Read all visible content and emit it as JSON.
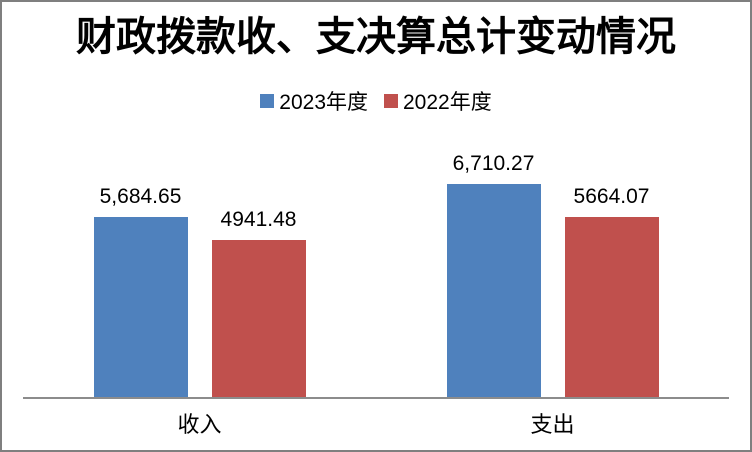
{
  "frame": {
    "background_color": "#FFFFFF",
    "border_color": "#7F7F7F"
  },
  "chart_data": {
    "type": "bar",
    "title": "财政拨款收、支决算总计变动情况",
    "categories": [
      "收入",
      "支出"
    ],
    "series": [
      {
        "name": "2023年度",
        "color": "#4F81BD",
        "values": [
          5684.65,
          6710.27
        ],
        "data_labels": [
          "5,684.65",
          "6,710.27"
        ]
      },
      {
        "name": "2022年度",
        "color": "#C0504D",
        "values": [
          4941.48,
          5664.07
        ],
        "data_labels": [
          "4941.48",
          "5664.07"
        ]
      }
    ],
    "legend": {
      "position": "top",
      "entries": [
        "2023年度",
        "2022年度"
      ]
    },
    "layout_hints": {
      "gridlines": false,
      "y_axis_visible": false,
      "data_labels_visible": true,
      "x_axis_line_color": "#8C8C8C"
    }
  }
}
